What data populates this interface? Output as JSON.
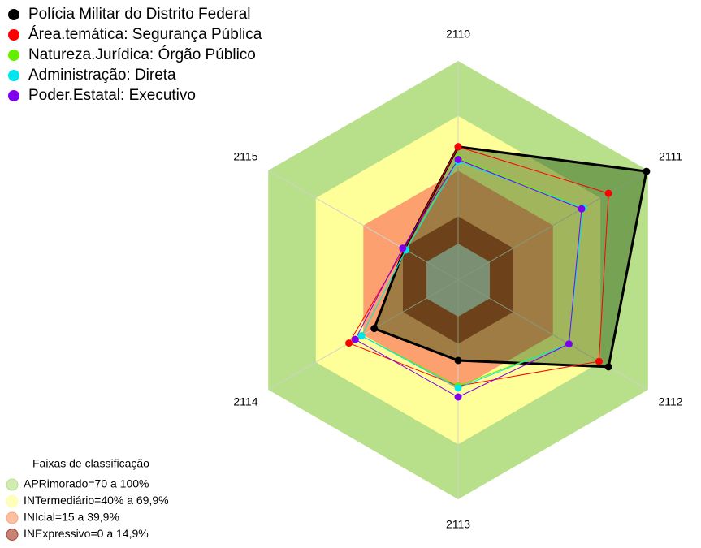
{
  "chart_data": {
    "type": "radar",
    "categories": [
      "2110",
      "2111",
      "2112",
      "2113",
      "2114",
      "2115"
    ],
    "rlim": [
      -20,
      100
    ],
    "center_color": "#c0c0c0",
    "bands_title": "Faixas de classificação",
    "bands": [
      {
        "name": "APRimorado=70 a 100%",
        "to": 100,
        "color": "#b8e08a"
      },
      {
        "name": "INTermediário=40% a 69,9%",
        "to": 69.9,
        "color": "#ffff9a"
      },
      {
        "name": "INIcial=15 a 39,9%",
        "to": 39.9,
        "color": "#fca070"
      },
      {
        "name": "INExpressivo=0 a 14,9%",
        "to": 14.9,
        "color": "#a8402c"
      }
    ],
    "series": [
      {
        "name": "Polícia Militar do Distrito Federal",
        "color": "#000000",
        "values": [
          53,
          99,
          75,
          24,
          33,
          14
        ]
      },
      {
        "name": "Área.temática: Segurança Pública",
        "color": "#ff0000",
        "values": [
          53,
          75,
          69,
          38,
          49,
          14
        ]
      },
      {
        "name": "Natureza.Jurídica: Órgão Público",
        "color": "#66ee00",
        "values": [
          47,
          59,
          50,
          38,
          41,
          13
        ]
      },
      {
        "name": "Administração: Direta",
        "color": "#00e5ee",
        "values": [
          45,
          59,
          50,
          39,
          41,
          13
        ]
      },
      {
        "name": "Poder.Estatal: Executivo",
        "color": "#8000ee",
        "values": [
          46,
          58,
          50,
          44,
          45,
          15
        ]
      }
    ]
  }
}
